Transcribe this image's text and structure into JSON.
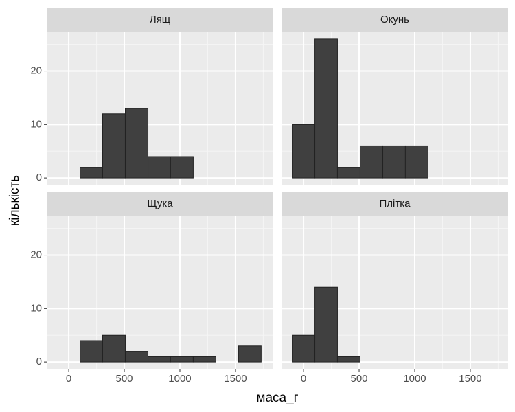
{
  "chart_data": {
    "type": "histogram",
    "xlabel": "маса_г",
    "ylabel": "кількість",
    "xlim": [
      -198,
      1840
    ],
    "ylim": [
      -1.4,
      27.4
    ],
    "xticks": [
      0,
      500,
      1000,
      1500
    ],
    "yticks": [
      0,
      10,
      20
    ],
    "grid": true,
    "color": "#404040",
    "bins": [
      -102,
      102,
      305,
      509,
      713,
      916,
      1120,
      1324,
      1527,
      1731
    ],
    "facets": [
      {
        "title": "Лящ",
        "counts": [
          0,
          2,
          12,
          13,
          4,
          4,
          0,
          0,
          0
        ]
      },
      {
        "title": "Окунь",
        "counts": [
          10,
          26,
          2,
          6,
          6,
          6,
          0,
          0,
          0
        ]
      },
      {
        "title": "Щука",
        "counts": [
          0,
          4,
          5,
          2,
          1,
          1,
          1,
          0,
          3
        ]
      },
      {
        "title": "Плітка",
        "counts": [
          5,
          14,
          1,
          0,
          0,
          0,
          0,
          0,
          0
        ]
      }
    ]
  }
}
